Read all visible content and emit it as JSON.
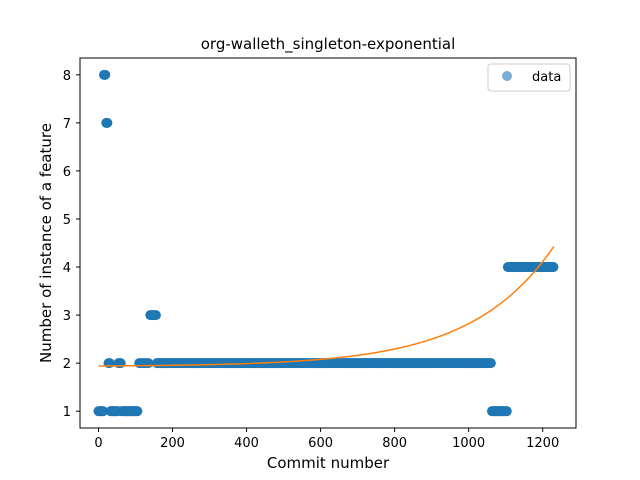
{
  "chart_data": {
    "type": "scatter",
    "title": "org-walleth_singleton-exponential",
    "xlabel": "Commit number",
    "ylabel": "Number of instance of a feature",
    "xlim": [
      -50,
      1290
    ],
    "ylim": [
      0.65,
      8.35
    ],
    "xticks": [
      0,
      200,
      400,
      600,
      800,
      1000,
      1200
    ],
    "yticks": [
      1,
      2,
      3,
      4,
      5,
      6,
      7,
      8
    ],
    "grid": false,
    "legend": {
      "placement": "top-right",
      "entries": [
        "data"
      ]
    },
    "colors": {
      "data": "#1f77b4",
      "fit": "#ff7f0e"
    },
    "series": [
      {
        "name": "data",
        "kind": "points",
        "points": [
          [
            0,
            1
          ],
          [
            3,
            1
          ],
          [
            6,
            1
          ],
          [
            9,
            1
          ],
          [
            12,
            1
          ],
          [
            15,
            8
          ],
          [
            18,
            8
          ],
          [
            21,
            7
          ],
          [
            24,
            7
          ],
          [
            27,
            2
          ],
          [
            30,
            2
          ],
          [
            33,
            1
          ],
          [
            36,
            1
          ],
          [
            39,
            1
          ],
          [
            42,
            1
          ],
          [
            45,
            1
          ],
          [
            48,
            1
          ],
          [
            51,
            1
          ],
          [
            54,
            2
          ],
          [
            57,
            2
          ],
          [
            60,
            2
          ],
          [
            63,
            1
          ],
          [
            66,
            1
          ],
          [
            69,
            1
          ],
          [
            72,
            1
          ],
          [
            75,
            1
          ],
          [
            78,
            1
          ],
          [
            81,
            1
          ],
          [
            84,
            1
          ],
          [
            87,
            1
          ],
          [
            90,
            1
          ],
          [
            93,
            1
          ],
          [
            96,
            1
          ],
          [
            99,
            1
          ],
          [
            102,
            1
          ],
          [
            105,
            1
          ],
          [
            110,
            2
          ],
          [
            115,
            2
          ],
          [
            120,
            2
          ],
          [
            125,
            2
          ],
          [
            130,
            2
          ],
          [
            135,
            2
          ],
          [
            140,
            3
          ],
          [
            144,
            3
          ],
          [
            148,
            3
          ],
          [
            152,
            3
          ],
          [
            155,
            3
          ],
          [
            158,
            2
          ],
          [
            1063,
            1
          ],
          [
            1066,
            1
          ],
          [
            1069,
            1
          ],
          [
            1072,
            1
          ],
          [
            1075,
            1
          ],
          [
            1078,
            1
          ],
          [
            1081,
            1
          ],
          [
            1084,
            1
          ],
          [
            1087,
            1
          ],
          [
            1090,
            1
          ],
          [
            1093,
            1
          ],
          [
            1096,
            1
          ],
          [
            1100,
            1
          ],
          [
            1103,
            1
          ]
        ],
        "runs": [
          {
            "x_start": 160,
            "x_end": 1060,
            "step": 3,
            "y": 2
          },
          {
            "x_start": 1106,
            "x_end": 1230,
            "step": 3,
            "y": 4
          }
        ]
      },
      {
        "name": "",
        "kind": "curve",
        "equation": {
          "form": "a + b*exp(c*x)",
          "a": 1.93,
          "b": 0.0101,
          "c": 0.00448
        },
        "x_range": [
          0,
          1230
        ]
      }
    ]
  }
}
